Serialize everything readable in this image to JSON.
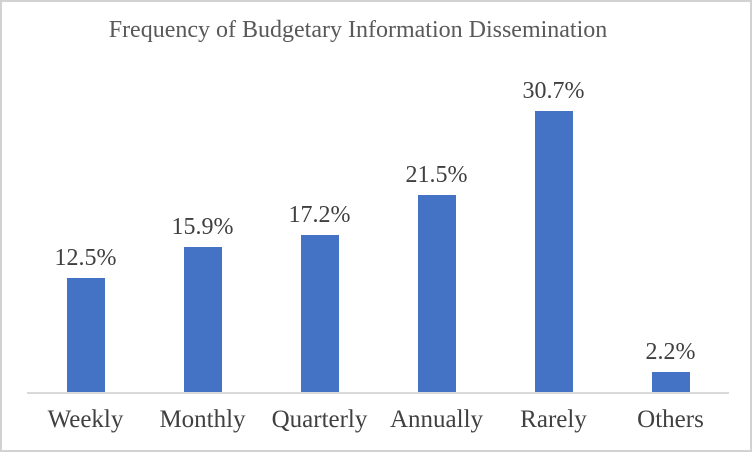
{
  "chart_data": {
    "type": "bar",
    "title": "Frequency of Budgetary Information Dissemination",
    "categories": [
      "Weekly",
      "Monthly",
      "Quarterly",
      "Annually",
      "Rarely",
      "Others"
    ],
    "values": [
      12.5,
      15.9,
      17.2,
      21.5,
      30.7,
      2.2
    ],
    "value_labels": [
      "12.5%",
      "15.9%",
      "17.2%",
      "21.5%",
      "30.7%",
      "2.2%"
    ],
    "xlabel": "",
    "ylabel": "",
    "ylim": [
      0,
      35
    ],
    "grid": false,
    "legend": "none",
    "y_axis_visible": false,
    "colors": {
      "bar": "#4472C4",
      "axis_line": "#D9D9D9",
      "title": "#595959",
      "labels": "#404040",
      "canvas_border": "#D2D2D2"
    }
  }
}
